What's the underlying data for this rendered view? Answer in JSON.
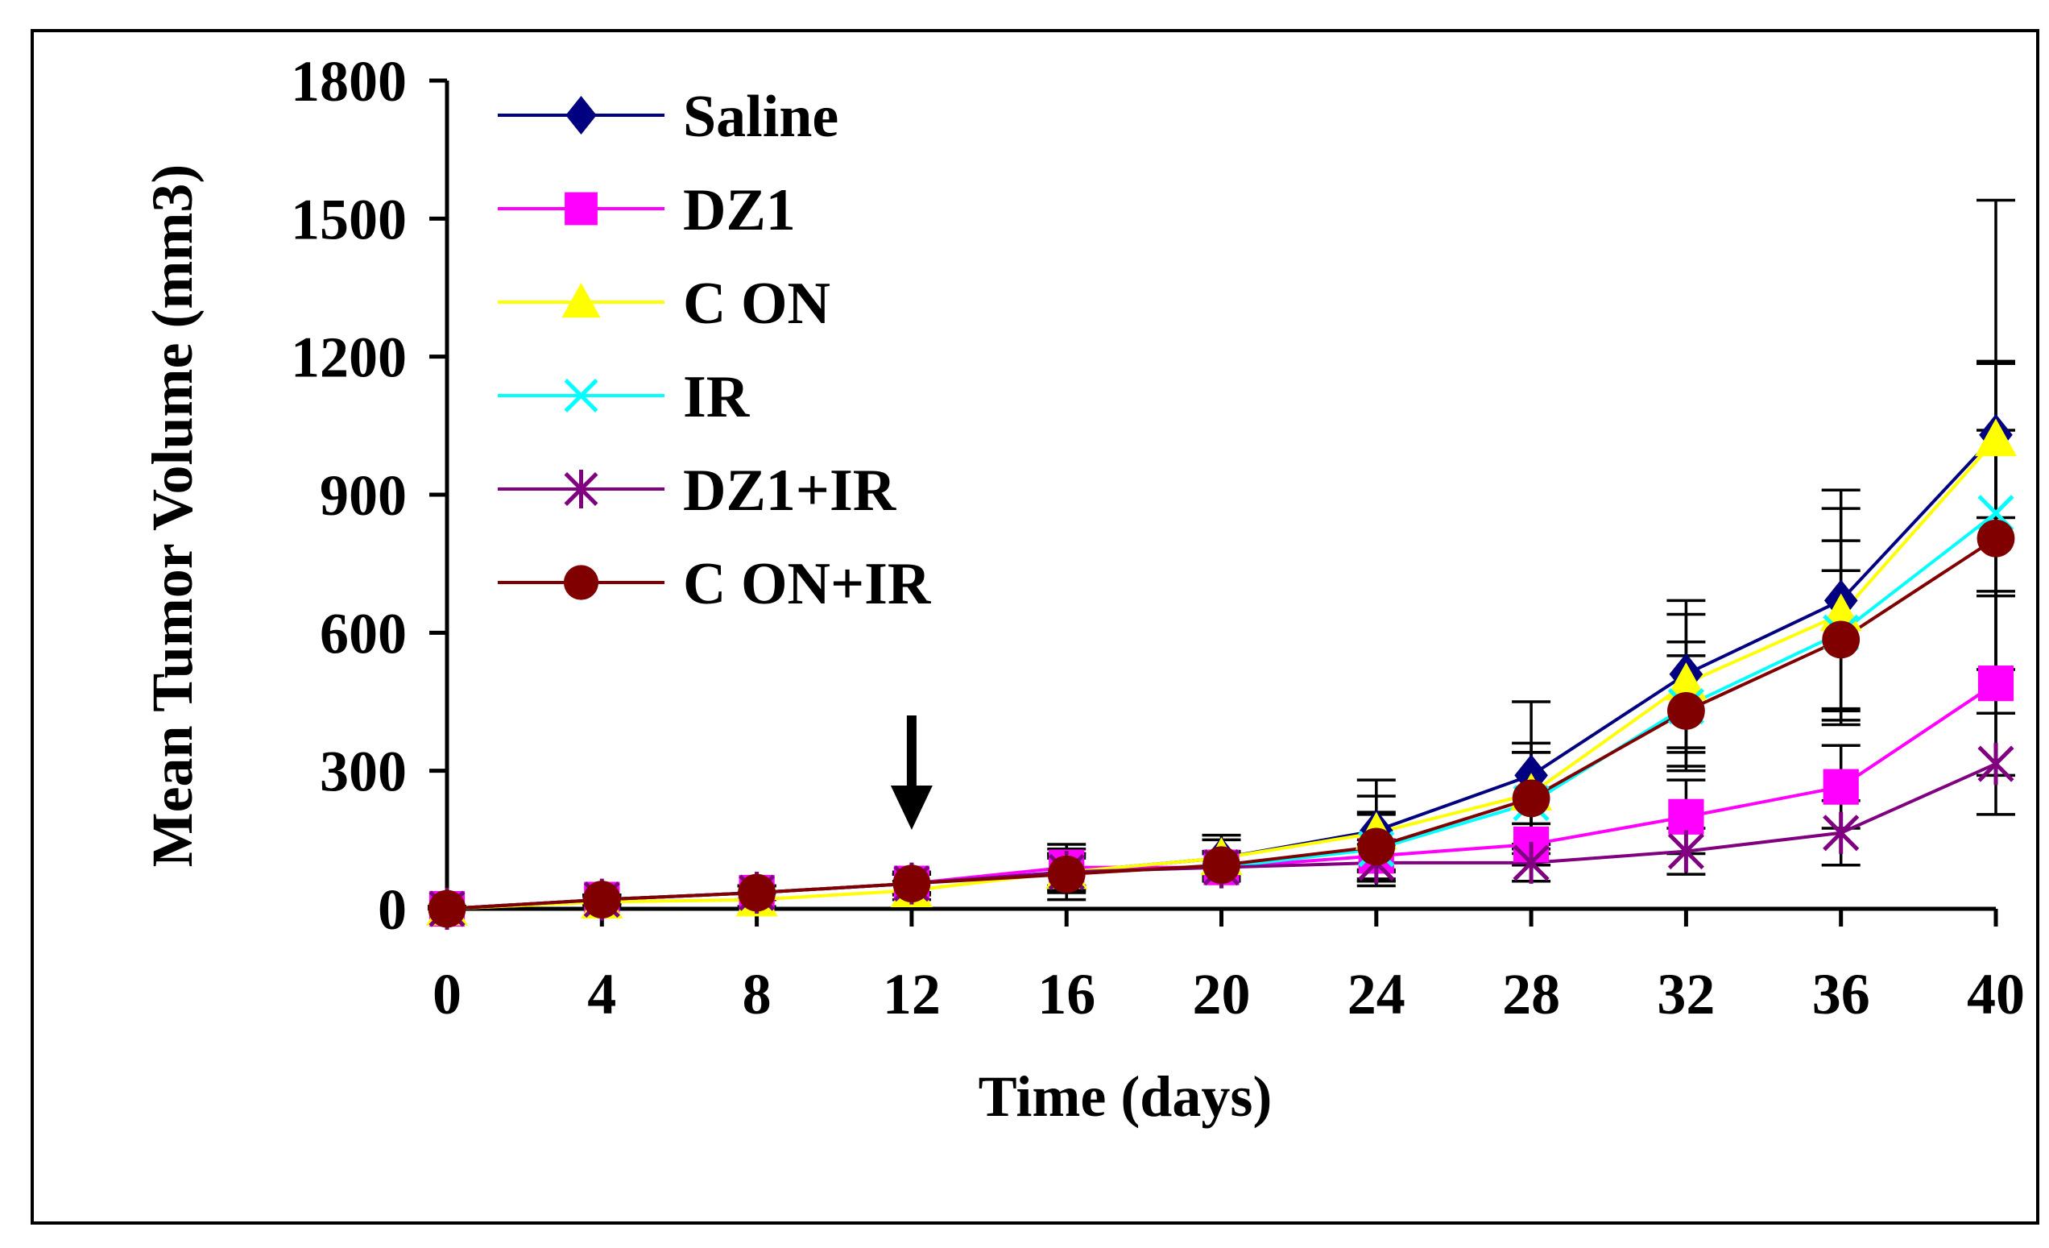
{
  "chart_data": {
    "type": "line",
    "title": "",
    "xlabel": "Time (days)",
    "ylabel": "Mean Tumor Volume (mm3)",
    "x": [
      0,
      4,
      8,
      12,
      16,
      20,
      24,
      28,
      32,
      36,
      40
    ],
    "xlim": [
      0,
      40
    ],
    "ylim": [
      0,
      1800
    ],
    "x_ticks": [
      "0",
      "4",
      "8",
      "12",
      "16",
      "20",
      "24",
      "28",
      "32",
      "36",
      "40"
    ],
    "y_ticks": [
      "0",
      "300",
      "600",
      "900",
      "1200",
      "1500",
      "1800"
    ],
    "y_tick_values": [
      0,
      300,
      600,
      900,
      1200,
      1500,
      1800
    ],
    "grid": false,
    "legend_position": "top-left",
    "annotations": [
      {
        "type": "arrow",
        "x": 12,
        "direction": "down"
      }
    ],
    "series": [
      {
        "name": "Saline",
        "color": "#000080",
        "marker": "diamond",
        "values": [
          0,
          20,
          35,
          55,
          80,
          110,
          170,
          290,
          510,
          670,
          1030
        ],
        "error": [
          5,
          10,
          15,
          25,
          60,
          50,
          110,
          160,
          160,
          240,
          510
        ]
      },
      {
        "name": "DZ1",
        "color": "#ff00ff",
        "marker": "square",
        "values": [
          0,
          20,
          35,
          55,
          90,
          90,
          115,
          140,
          200,
          265,
          490
        ],
        "error": [
          5,
          10,
          15,
          20,
          40,
          30,
          35,
          45,
          80,
          90,
          200
        ]
      },
      {
        "name": "C ON",
        "color": "#ffff00",
        "marker": "triangle",
        "values": [
          0,
          15,
          20,
          40,
          80,
          110,
          165,
          250,
          490,
          640,
          1020
        ],
        "error": [
          5,
          10,
          15,
          20,
          40,
          40,
          80,
          110,
          150,
          230,
          170
        ]
      },
      {
        "name": "IR",
        "color": "#00ffff",
        "marker": "x",
        "values": [
          0,
          20,
          35,
          55,
          80,
          90,
          130,
          230,
          440,
          600,
          860
        ],
        "error": [
          5,
          10,
          15,
          20,
          40,
          30,
          80,
          110,
          140,
          200,
          180
        ]
      },
      {
        "name": "DZ1+IR",
        "color": "#800080",
        "marker": "star",
        "values": [
          0,
          20,
          35,
          55,
          80,
          90,
          100,
          100,
          125,
          165,
          315
        ],
        "error": [
          5,
          10,
          15,
          20,
          30,
          30,
          40,
          40,
          50,
          70,
          110
        ]
      },
      {
        "name": "C ON+IR",
        "color": "#800000",
        "marker": "circle",
        "values": [
          0,
          20,
          35,
          55,
          75,
          95,
          135,
          240,
          430,
          585,
          805
        ],
        "error": [
          5,
          10,
          15,
          20,
          40,
          30,
          70,
          100,
          120,
          150,
          380
        ]
      }
    ]
  }
}
